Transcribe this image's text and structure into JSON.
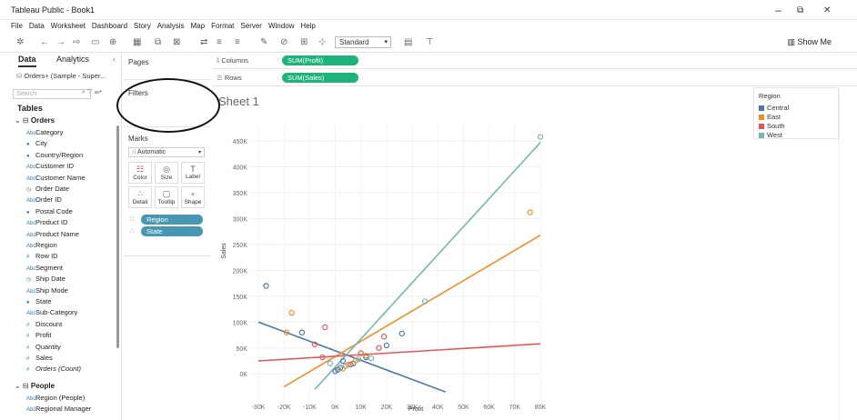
{
  "window": {
    "title": "Tableau Public - Book1",
    "minimize": "–",
    "restore": "⧉",
    "close": "✕"
  },
  "menu": [
    "File",
    "Data",
    "Worksheet",
    "Dashboard",
    "Story",
    "Analysis",
    "Map",
    "Format",
    "Server",
    "Window",
    "Help"
  ],
  "toolbar": {
    "fit": "Standard",
    "show_me": "Show Me"
  },
  "data_pane": {
    "tab_data": "Data",
    "tab_analytics": "Analytics",
    "datasource": "Orders+ (Sample - Super...",
    "search_placeholder": "Search",
    "tables_label": "Tables",
    "orders_label": "Orders",
    "people_label": "People",
    "fields": [
      {
        "name": "Category",
        "kind": "dim",
        "icon": "Abc"
      },
      {
        "name": "City",
        "kind": "dim",
        "icon": "●"
      },
      {
        "name": "Country/Region",
        "kind": "dim",
        "icon": "●"
      },
      {
        "name": "Customer ID",
        "kind": "dim",
        "icon": "Abc"
      },
      {
        "name": "Customer Name",
        "kind": "dim",
        "icon": "Abc"
      },
      {
        "name": "Order Date",
        "kind": "dim",
        "icon": "◷"
      },
      {
        "name": "Order ID",
        "kind": "dim",
        "icon": "Abc"
      },
      {
        "name": "Postal Code",
        "kind": "dim",
        "icon": "●"
      },
      {
        "name": "Product ID",
        "kind": "dim",
        "icon": "Abc"
      },
      {
        "name": "Product Name",
        "kind": "dim",
        "icon": "Abc"
      },
      {
        "name": "Region",
        "kind": "dim",
        "icon": "Abc"
      },
      {
        "name": "Row ID",
        "kind": "dim",
        "icon": "#"
      },
      {
        "name": "Segment",
        "kind": "dim",
        "icon": "Abc"
      },
      {
        "name": "Ship Date",
        "kind": "dim",
        "icon": "◷"
      },
      {
        "name": "Ship Mode",
        "kind": "dim",
        "icon": "Abc"
      },
      {
        "name": "State",
        "kind": "dim",
        "icon": "●"
      },
      {
        "name": "Sub-Category",
        "kind": "dim",
        "icon": "Abc"
      },
      {
        "name": "Discount",
        "kind": "mea",
        "icon": "#"
      },
      {
        "name": "Profit",
        "kind": "mea",
        "icon": "#"
      },
      {
        "name": "Quantity",
        "kind": "mea",
        "icon": "#"
      },
      {
        "name": "Sales",
        "kind": "mea",
        "icon": "#"
      },
      {
        "name": "Orders (Count)",
        "kind": "mea",
        "icon": "#"
      }
    ],
    "people_fields": [
      {
        "name": "Region (People)",
        "kind": "dim",
        "icon": "Abc"
      },
      {
        "name": "Regional Manager",
        "kind": "dim",
        "icon": "Abc"
      }
    ]
  },
  "cards": {
    "pages": "Pages",
    "filters": "Filters",
    "marks": "Marks",
    "mark_type": "Automatic",
    "buttons": [
      {
        "label": "Color",
        "icon": "☷"
      },
      {
        "label": "Size",
        "icon": "◎"
      },
      {
        "label": "Label",
        "icon": "T"
      },
      {
        "label": "Detail",
        "icon": "∴"
      },
      {
        "label": "Tooltip",
        "icon": "▢"
      },
      {
        "label": "Shape",
        "icon": "∘"
      }
    ],
    "pills": [
      {
        "label": "Region",
        "icon": "∷"
      },
      {
        "label": "State",
        "icon": "∴"
      }
    ]
  },
  "shelves": {
    "columns_label": "Columns",
    "columns_pill": "SUM(Profit)",
    "rows_label": "Rows",
    "rows_pill": "SUM(Sales)"
  },
  "viz": {
    "sheet_title": "Sheet 1"
  },
  "legend": {
    "title": "Region",
    "items": [
      {
        "name": "Central",
        "color": "#4e79a7"
      },
      {
        "name": "East",
        "color": "#f28e2b"
      },
      {
        "name": "South",
        "color": "#e15759"
      },
      {
        "name": "West",
        "color": "#76b7b2"
      }
    ]
  },
  "chart_data": {
    "type": "scatter",
    "xlabel": "Profit",
    "ylabel": "Sales",
    "xlim": [
      -30000,
      80000
    ],
    "ylim": [
      -40000,
      480000
    ],
    "xticks": [
      -30000,
      -20000,
      -10000,
      0,
      10000,
      20000,
      30000,
      40000,
      50000,
      60000,
      70000,
      80000
    ],
    "xtick_labels": [
      "-30K",
      "-20K",
      "-10K",
      "0K",
      "10K",
      "20K",
      "30K",
      "40K",
      "50K",
      "60K",
      "70K",
      "80K"
    ],
    "yticks": [
      0,
      50000,
      100000,
      150000,
      200000,
      250000,
      300000,
      350000,
      400000,
      450000
    ],
    "ytick_labels": [
      "0K",
      "50K",
      "100K",
      "150K",
      "200K",
      "250K",
      "300K",
      "350K",
      "400K",
      "450K"
    ],
    "grid": true,
    "series": [
      {
        "name": "Central",
        "color": "#4e79a7",
        "points": [
          [
            -27000,
            170000
          ],
          [
            -13000,
            80000
          ],
          [
            20000,
            55000
          ],
          [
            26000,
            78000
          ],
          [
            3000,
            25000
          ],
          [
            0,
            5000
          ],
          [
            1000,
            8000
          ],
          [
            2000,
            12000
          ],
          [
            12000,
            32000
          ],
          [
            7000,
            20000
          ]
        ],
        "trend": [
          [
            -30000,
            100000
          ],
          [
            43000,
            -35000
          ]
        ]
      },
      {
        "name": "East",
        "color": "#f28e2b",
        "points": [
          [
            -17000,
            118000
          ],
          [
            -19000,
            80000
          ],
          [
            76000,
            312000
          ],
          [
            5000,
            18000
          ],
          [
            3000,
            10000
          ],
          [
            8000,
            26000
          ],
          [
            12000,
            35000
          ]
        ],
        "trend": [
          [
            -20000,
            -25000
          ],
          [
            80000,
            268000
          ]
        ]
      },
      {
        "name": "South",
        "color": "#e15759",
        "points": [
          [
            -4000,
            90000
          ],
          [
            -8000,
            57000
          ],
          [
            19000,
            72000
          ],
          [
            17000,
            50000
          ],
          [
            10000,
            40000
          ],
          [
            -5000,
            32000
          ],
          [
            6000,
            18000
          ]
        ],
        "trend": [
          [
            -30000,
            25000
          ],
          [
            80000,
            58000
          ]
        ]
      },
      {
        "name": "West",
        "color": "#76b7b2",
        "points": [
          [
            80000,
            458000
          ],
          [
            35000,
            140000
          ],
          [
            -2000,
            20000
          ],
          [
            4000,
            15000
          ],
          [
            9000,
            28000
          ],
          [
            14000,
            30000
          ]
        ],
        "trend": [
          [
            -8000,
            -30000
          ],
          [
            82000,
            458000
          ]
        ]
      }
    ]
  }
}
